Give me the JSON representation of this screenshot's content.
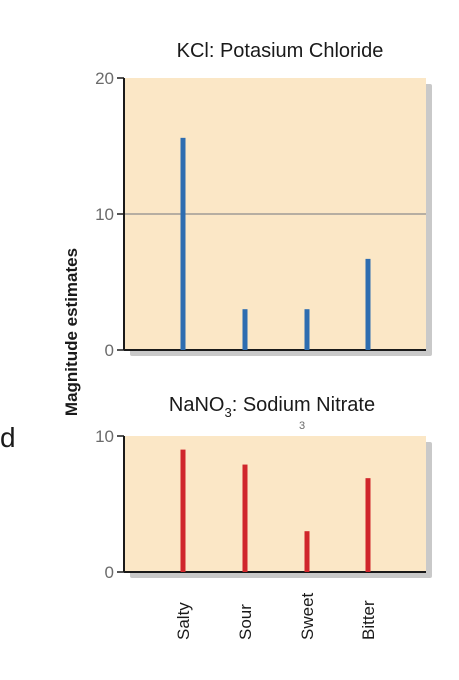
{
  "page": {
    "stray_text": "d",
    "stray_small": "3"
  },
  "colors": {
    "panel_background": "#fbe7c6",
    "panel_shadow": "#c9c9c9",
    "axis": "#1a1a1a",
    "gridline": "#8c8c8c"
  },
  "chart_data": {
    "type": "bar",
    "ylabel": "Magnitude estimates",
    "categories": [
      "Salty",
      "Sour",
      "Sweet",
      "Bitter"
    ],
    "grid": "horizontal line at 10 in top panel only",
    "panels": [
      {
        "title_main": "KCl: Potasium Chloride",
        "title_parts": [
          "KCl: Potasium Chloride"
        ],
        "title_sub": "",
        "ylim": [
          0,
          20
        ],
        "yticks": [
          "20",
          "10",
          "0"
        ],
        "ytick_values": [
          20,
          10,
          0
        ],
        "series": [
          {
            "values": [
              15.6,
              3.0,
              3.0,
              6.7
            ],
            "color": "#2e6db0"
          }
        ]
      },
      {
        "title_parts": [
          "NaNO",
          "3",
          ": Sodium Nitrate"
        ],
        "ylim": [
          0,
          10
        ],
        "yticks": [
          "10",
          "0"
        ],
        "ytick_values": [
          10,
          0
        ],
        "series": [
          {
            "values": [
              9.0,
              7.9,
              3.0,
              6.9
            ],
            "color": "#d0262b"
          }
        ]
      }
    ]
  }
}
